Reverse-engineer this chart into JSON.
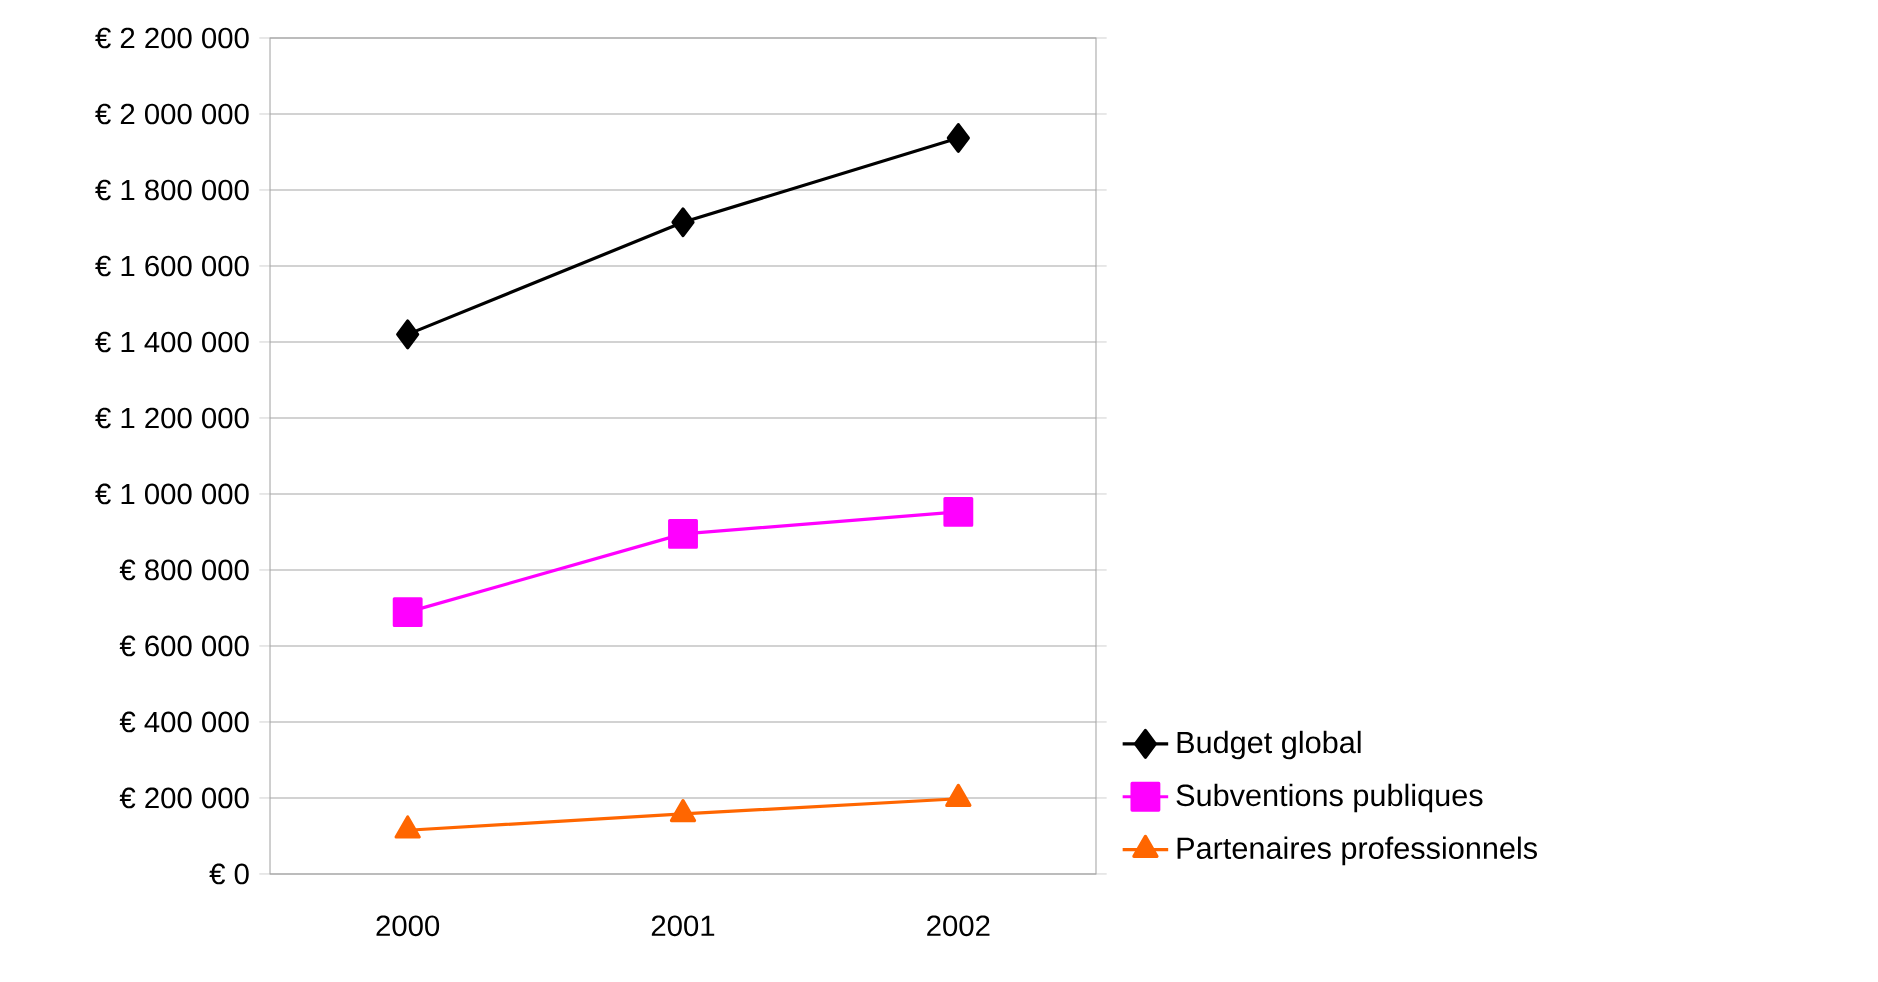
{
  "chart_data": {
    "type": "line",
    "categories": [
      "2000",
      "2001",
      "2002"
    ],
    "series": [
      {
        "name": "Budget global",
        "color": "#000000",
        "marker": "diamond",
        "values": [
          1420000,
          1715000,
          1937000
        ]
      },
      {
        "name": "Subventions publiques",
        "color": "#ff00ff",
        "marker": "square",
        "values": [
          689000,
          895000,
          953000
        ]
      },
      {
        "name": "Partenaires professionnels",
        "color": "#ff6600",
        "marker": "triangle",
        "values": [
          115000,
          158000,
          198000
        ]
      }
    ],
    "ylim": [
      0,
      2200000
    ],
    "yticks": [
      {
        "value": 0,
        "label": "€ 0"
      },
      {
        "value": 200000,
        "label": "€ 200 000"
      },
      {
        "value": 400000,
        "label": "€ 400 000"
      },
      {
        "value": 600000,
        "label": "€ 600 000"
      },
      {
        "value": 800000,
        "label": "€ 800 000"
      },
      {
        "value": 1000000,
        "label": "€ 1 000 000"
      },
      {
        "value": 1200000,
        "label": "€ 1 200 000"
      },
      {
        "value": 1400000,
        "label": "€ 1 400 000"
      },
      {
        "value": 1600000,
        "label": "€ 1 600 000"
      },
      {
        "value": 1800000,
        "label": "€ 1 800 000"
      },
      {
        "value": 2000000,
        "label": "€ 2 000 000"
      },
      {
        "value": 2200000,
        "label": "€ 2 200 000"
      }
    ],
    "grid": "y",
    "legend": "right",
    "line_style": "solid"
  }
}
